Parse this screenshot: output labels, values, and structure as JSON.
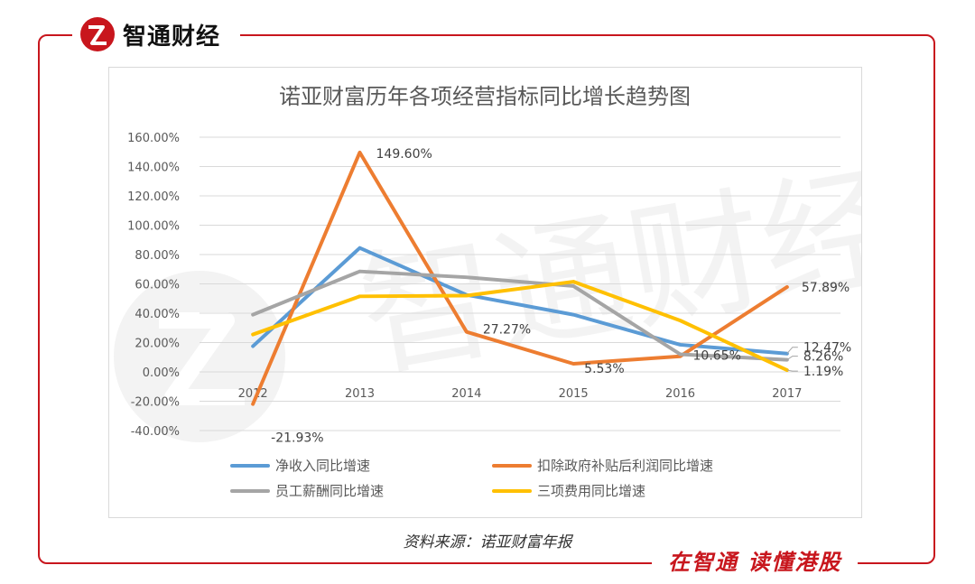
{
  "brand": {
    "name": "智通财经"
  },
  "slogan": "在智通 读懂港股",
  "source": "资料来源：诺亚财富年报",
  "colors": {
    "accent": "#c8161d",
    "s1": "#5b9bd5",
    "s2": "#ed7d31",
    "s3": "#a5a5a5",
    "s4": "#ffc000"
  },
  "chart_data": {
    "type": "line",
    "title": "诺亚财富历年各项经营指标同比增长趋势图",
    "categories": [
      "2012",
      "2013",
      "2014",
      "2015",
      "2016",
      "2017"
    ],
    "y_ticks": [
      "160.00%",
      "140.00%",
      "120.00%",
      "100.00%",
      "80.00%",
      "60.00%",
      "40.00%",
      "20.00%",
      "0.00%",
      "-20.00%",
      "-40.00%"
    ],
    "ylim": [
      -40,
      160
    ],
    "grid": true,
    "legend_position": "bottom",
    "series": [
      {
        "name": "净收入同比增速",
        "color": "#5b9bd5",
        "values": [
          17.5,
          84.5,
          52.5,
          39.0,
          18.5,
          12.47
        ],
        "labels": [
          "",
          "",
          "",
          "",
          "",
          "12.47%"
        ]
      },
      {
        "name": "扣除政府补贴后利润同比增速",
        "color": "#ed7d31",
        "values": [
          -21.93,
          149.6,
          27.27,
          5.53,
          10.65,
          57.89
        ],
        "labels": [
          "-21.93%",
          "149.60%",
          "27.27%",
          "5.53%",
          "10.65%",
          "57.89%"
        ]
      },
      {
        "name": "员工薪酬同比增速",
        "color": "#a5a5a5",
        "values": [
          39.0,
          68.5,
          64.5,
          58.5,
          12.0,
          8.26
        ],
        "labels": [
          "",
          "",
          "",
          "",
          "",
          "8.26%"
        ]
      },
      {
        "name": "三项费用同比增速",
        "color": "#ffc000",
        "values": [
          25.5,
          51.5,
          52.0,
          61.5,
          35.0,
          1.19
        ],
        "labels": [
          "",
          "",
          "",
          "",
          "",
          "1.19%"
        ]
      }
    ]
  }
}
